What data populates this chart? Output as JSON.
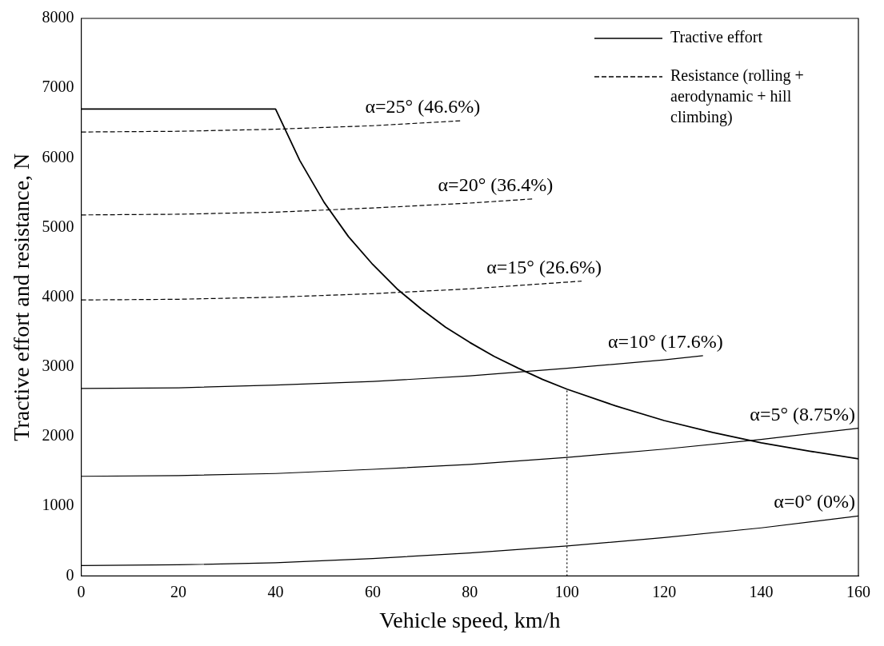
{
  "chart_data": {
    "type": "line",
    "xlabel": "Vehicle speed, km/h",
    "ylabel": "Tractive effort and resistance, N",
    "xlim": [
      0,
      160
    ],
    "xticks": [
      0,
      20,
      40,
      60,
      80,
      100,
      120,
      140,
      160
    ],
    "ylim": [
      0,
      8000
    ],
    "yticks": [
      0,
      1000,
      2000,
      3000,
      4000,
      5000,
      6000,
      7000,
      8000
    ],
    "grid": false,
    "legend": "top right",
    "marker": "none",
    "series": [
      {
        "name": "Tractive effort",
        "color": "#000000",
        "line_style": "solid",
        "x": [
          0,
          40,
          45,
          50,
          55,
          60,
          65,
          70,
          75,
          80,
          85,
          90,
          95,
          100,
          110,
          120,
          130,
          140,
          150,
          160
        ],
        "values": [
          6700,
          6700,
          5960,
          5360,
          4870,
          4470,
          4120,
          3830,
          3570,
          3350,
          3150,
          2980,
          2820,
          2680,
          2440,
          2230,
          2060,
          1910,
          1790,
          1680
        ]
      },
      {
        "name": "Resistance (rolling + aerodynamic + hill climbing)",
        "color": "#000000",
        "line_style": "dashed",
        "x": [
          0,
          20,
          40,
          60,
          78
        ],
        "values": [
          6370,
          6380,
          6410,
          6460,
          6530
        ]
      },
      {
        "color": "#000000",
        "line_style": "dashed",
        "x": [
          0,
          20,
          40,
          60,
          80,
          93
        ],
        "values": [
          5180,
          5190,
          5220,
          5280,
          5350,
          5410
        ]
      },
      {
        "color": "#000000",
        "line_style": "dashed",
        "x": [
          0,
          20,
          40,
          60,
          80,
          103
        ],
        "values": [
          3960,
          3970,
          4000,
          4050,
          4120,
          4230
        ]
      },
      {
        "color": "#000000",
        "line_style": "solid",
        "x": [
          0,
          20,
          40,
          60,
          80,
          100,
          120,
          128
        ],
        "values": [
          2690,
          2700,
          2740,
          2790,
          2870,
          2980,
          3100,
          3160
        ]
      },
      {
        "color": "#000000",
        "line_style": "solid",
        "x": [
          0,
          20,
          40,
          60,
          80,
          100,
          120,
          140,
          160
        ],
        "values": [
          1430,
          1440,
          1470,
          1530,
          1600,
          1700,
          1820,
          1960,
          2120
        ]
      },
      {
        "color": "#000000",
        "line_style": "solid",
        "x": [
          0,
          20,
          40,
          60,
          80,
          100,
          120,
          140,
          160
        ],
        "values": [
          150,
          160,
          190,
          250,
          330,
          430,
          550,
          690,
          860
        ]
      },
      {
        "color": "#000000",
        "line_style": "dotted",
        "x": [
          100,
          100
        ],
        "values": [
          0,
          2680
        ]
      }
    ],
    "annotations": [
      {
        "text": "α=25° (46.6%)",
        "x": 78,
        "y": 6530
      },
      {
        "text": "α=20° (36.4%)",
        "x": 93,
        "y": 5410
      },
      {
        "text": "α=15° (26.6%)",
        "x": 103,
        "y": 4230
      },
      {
        "text": "α=10° (17.6%)",
        "x": 128,
        "y": 3160
      },
      {
        "text": "α=5° (8.75%)",
        "x": 160,
        "y": 2120
      },
      {
        "text": "α=0° (0%)",
        "x": 160,
        "y": 860
      }
    ]
  }
}
